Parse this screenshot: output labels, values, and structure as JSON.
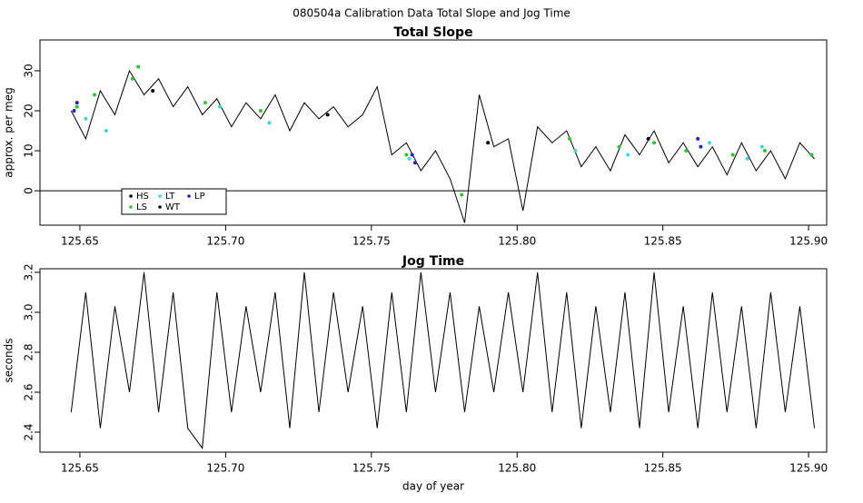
{
  "title": "080504a   Calibration Data Total Slope and Jog Time",
  "chart_data": [
    {
      "type": "line",
      "title": "Total Slope",
      "ylabel": "approx. per meg",
      "legend": "lower left",
      "hline": 0,
      "xlim": [
        125.6363,
        125.9062
      ],
      "ylim": [
        -8.6,
        37.7
      ],
      "xticks": [
        {
          "value": 125.65,
          "label": "125.65"
        },
        {
          "value": 125.7,
          "label": "125.70"
        },
        {
          "value": 125.75,
          "label": "125.75"
        },
        {
          "value": 125.8,
          "label": "125.80"
        },
        {
          "value": 125.85,
          "label": "125.85"
        },
        {
          "value": 125.9,
          "label": "125.90"
        }
      ],
      "yticks": [
        0,
        10,
        20,
        30
      ],
      "series": [
        {
          "name": "HS",
          "color": "#000000",
          "x": [
            125.647,
            125.652,
            125.657,
            125.662,
            125.667,
            125.672,
            125.677,
            125.682,
            125.687,
            125.692,
            125.697,
            125.702,
            125.707,
            125.712,
            125.717,
            125.722,
            125.727,
            125.732,
            125.737,
            125.742,
            125.747,
            125.752,
            125.757,
            125.762,
            125.767,
            125.772,
            125.777,
            125.782,
            125.787,
            125.792,
            125.797,
            125.802,
            125.807,
            125.812,
            125.817,
            125.822,
            125.827,
            125.832,
            125.837,
            125.842,
            125.847,
            125.852,
            125.857,
            125.862,
            125.867,
            125.872,
            125.877,
            125.882,
            125.887,
            125.892,
            125.897,
            125.902
          ],
          "values": [
            20,
            13,
            25,
            19,
            30,
            24,
            28,
            21,
            26,
            19,
            23,
            16,
            22,
            18,
            24,
            15,
            22,
            18,
            21,
            16,
            19,
            26,
            9,
            12,
            5,
            10,
            3,
            -8,
            24,
            11,
            13,
            -5,
            16,
            12,
            15,
            6,
            11,
            5,
            14,
            9,
            15,
            7,
            12,
            6,
            11,
            4,
            12,
            5,
            10,
            3,
            12,
            8
          ]
        },
        {
          "name": "LS",
          "color": "#22cc22",
          "x": [
            125.649,
            125.655,
            125.668,
            125.67,
            125.693,
            125.712,
            125.762,
            125.781,
            125.818,
            125.835,
            125.847,
            125.858,
            125.874,
            125.885,
            125.901
          ],
          "values": [
            21,
            24,
            28,
            31,
            22,
            20,
            9,
            -1,
            13,
            11,
            12,
            10,
            9,
            10,
            9
          ]
        },
        {
          "name": "LT",
          "color": "#33dddd",
          "x": [
            125.652,
            125.659,
            125.698,
            125.715,
            125.763,
            125.82,
            125.838,
            125.866,
            125.879,
            125.884
          ],
          "values": [
            18,
            15,
            21,
            17,
            8,
            10,
            9,
            12,
            8,
            11
          ]
        },
        {
          "name": "WT",
          "color": "#000000",
          "x": [
            125.675,
            125.735,
            125.79,
            125.845
          ],
          "values": [
            25,
            19,
            12,
            13
          ]
        },
        {
          "name": "LP",
          "color": "#2222cc",
          "x": [
            125.648,
            125.649,
            125.764,
            125.765,
            125.862,
            125.863
          ],
          "values": [
            20,
            22,
            9,
            7,
            13,
            11
          ]
        }
      ]
    },
    {
      "type": "line",
      "title": "Jog Time",
      "ylabel": "seconds",
      "xlabel": "day of year",
      "xlim": [
        125.6363,
        125.9062
      ],
      "ylim": [
        2.3,
        3.218
      ],
      "xticks": [
        {
          "value": 125.65,
          "label": "125.65"
        },
        {
          "value": 125.7,
          "label": "125.70"
        },
        {
          "value": 125.75,
          "label": "125.75"
        },
        {
          "value": 125.8,
          "label": "125.80"
        },
        {
          "value": 125.85,
          "label": "125.85"
        },
        {
          "value": 125.9,
          "label": "125.90"
        }
      ],
      "yticks": [
        2.4,
        2.6,
        2.8,
        {
          "value": 3,
          "label": "3.0"
        },
        3.2
      ],
      "series": [
        {
          "color": "#000000",
          "x": [
            125.647,
            125.652,
            125.657,
            125.662,
            125.667,
            125.672,
            125.677,
            125.682,
            125.687,
            125.692,
            125.697,
            125.702,
            125.707,
            125.712,
            125.717,
            125.722,
            125.727,
            125.732,
            125.737,
            125.742,
            125.747,
            125.752,
            125.757,
            125.762,
            125.767,
            125.772,
            125.777,
            125.782,
            125.787,
            125.792,
            125.797,
            125.802,
            125.807,
            125.812,
            125.817,
            125.822,
            125.827,
            125.832,
            125.837,
            125.842,
            125.847,
            125.852,
            125.857,
            125.862,
            125.867,
            125.872,
            125.877,
            125.882,
            125.887,
            125.892,
            125.897,
            125.902
          ],
          "values": [
            2.5,
            3.1,
            2.42,
            3.03,
            2.6,
            3.2,
            2.5,
            3.1,
            2.42,
            2.32,
            3.1,
            2.5,
            3.03,
            2.6,
            3.1,
            2.42,
            3.2,
            2.5,
            3.1,
            2.6,
            3.03,
            2.42,
            3.1,
            2.5,
            3.2,
            2.6,
            3.1,
            2.5,
            3.03,
            2.6,
            3.1,
            2.6,
            3.2,
            2.5,
            3.1,
            2.42,
            3.03,
            2.5,
            3.1,
            2.42,
            3.2,
            2.5,
            3.03,
            2.42,
            3.1,
            2.5,
            3.03,
            2.42,
            3.1,
            2.5,
            3.03,
            2.42
          ]
        }
      ]
    }
  ]
}
